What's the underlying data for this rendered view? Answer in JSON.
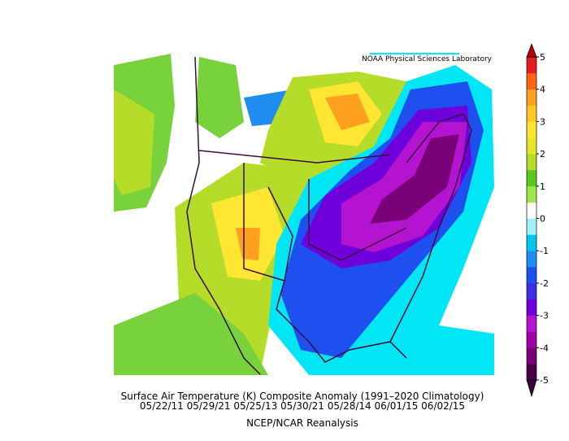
{
  "header": {
    "credit": "NOAA Physical Sciences Laboratory"
  },
  "caption": {
    "title": "Surface Air Temperature (K) Composite Anomaly (1991–2020 Climatology)",
    "dates": "05/22/11 05/29/21 05/25/13 05/30/21 05/28/14 06/01/15 06/02/15",
    "source": "NCEP/NCAR Reanalysis"
  },
  "colorbar": {
    "lim": [
      -5,
      5
    ],
    "ticks": [
      5,
      4,
      3,
      2,
      1,
      0,
      -1,
      -2,
      -3,
      -4,
      -5
    ],
    "colors": [
      "#4a0048",
      "#7a0078",
      "#a000a8",
      "#b414d2",
      "#6e00dc",
      "#3c2ee6",
      "#1e50f0",
      "#1e8cf0",
      "#00c8f0",
      "#a0f0fa",
      "#ffffff",
      "#9ee650",
      "#5ac81e",
      "#b4dc28",
      "#e6e628",
      "#ffe632",
      "#ffc828",
      "#ffa01e",
      "#ff6414",
      "#e61e1e"
    ],
    "under": "#3c003c",
    "over": "#b40000"
  }
}
